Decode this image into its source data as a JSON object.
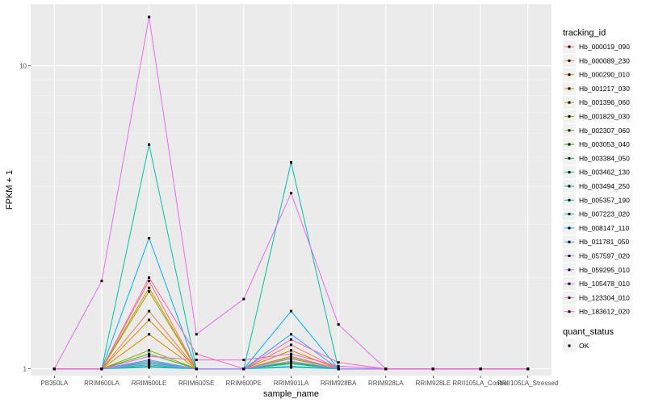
{
  "chart_data": {
    "type": "line",
    "xlabel": "sample_name",
    "ylabel": "FPKM + 1",
    "y_scale": "log10",
    "ylim": [
      0.95,
      16
    ],
    "y_ticks": [
      1,
      10
    ],
    "grid": true,
    "legend_position": "right",
    "point_color": "#000000",
    "panel_background": "#ebebeb",
    "categories": [
      "PB350LA",
      "RRIM600LA",
      "RRIM600LE",
      "RRIM600SE",
      "RRIM600PE",
      "RRIM901LA",
      "RRIM928BA",
      "RRIM928LA",
      "RRIM928LE",
      "RRII105LA_Control",
      "RRII105LA_Stressed"
    ],
    "legend_title": "tracking_id",
    "series": [
      {
        "name": "Hb_000019_090",
        "color": "#F8766D",
        "values": [
          1,
          1,
          1.95,
          1,
          1,
          1.2,
          1,
          1,
          1,
          1,
          1
        ]
      },
      {
        "name": "Hb_000089_230",
        "color": "#F07F4C",
        "values": [
          1,
          1,
          1.55,
          1,
          1,
          1.15,
          1,
          1,
          1,
          1,
          1
        ]
      },
      {
        "name": "Hb_000290_010",
        "color": "#E38900",
        "values": [
          1,
          1,
          1.45,
          1,
          1,
          1.1,
          1,
          1,
          1,
          1,
          1
        ]
      },
      {
        "name": "Hb_001217_030",
        "color": "#D29200",
        "values": [
          1,
          1,
          1.3,
          1,
          1,
          1.15,
          1,
          1,
          1,
          1,
          1
        ]
      },
      {
        "name": "Hb_001396_060",
        "color": "#BE9C00",
        "values": [
          1,
          1,
          1.85,
          1,
          1,
          1.05,
          1,
          1,
          1,
          1,
          1
        ]
      },
      {
        "name": "Hb_001829_030",
        "color": "#A3A500",
        "values": [
          1,
          1,
          1.8,
          1,
          1,
          1.08,
          1,
          1,
          1,
          1,
          1
        ]
      },
      {
        "name": "Hb_002307_060",
        "color": "#7CAE00",
        "values": [
          1,
          1,
          1.15,
          1,
          1,
          1.05,
          1,
          1,
          1,
          1,
          1
        ]
      },
      {
        "name": "Hb_003053_040",
        "color": "#39B600",
        "values": [
          1,
          1,
          1.12,
          1,
          1,
          1.04,
          1,
          1,
          1,
          1,
          1
        ]
      },
      {
        "name": "Hb_003384_050",
        "color": "#00BB4E",
        "values": [
          1,
          1,
          1.05,
          1,
          1,
          1.05,
          1,
          1,
          1,
          1,
          1
        ]
      },
      {
        "name": "Hb_003462_130",
        "color": "#00BF7D",
        "values": [
          1,
          1,
          1.02,
          1,
          1,
          1.04,
          1,
          1,
          1,
          1,
          1
        ]
      },
      {
        "name": "Hb_003494_250",
        "color": "#00C1A3",
        "values": [
          1,
          1,
          5.5,
          1,
          1,
          4.8,
          1,
          1,
          1,
          1,
          1
        ]
      },
      {
        "name": "Hb_005357_190",
        "color": "#00BFC4",
        "values": [
          1,
          1,
          1.03,
          1,
          1,
          1.02,
          1,
          1,
          1,
          1,
          1
        ]
      },
      {
        "name": "Hb_007223_020",
        "color": "#00BAE0",
        "values": [
          1,
          1,
          1.01,
          1,
          1,
          1.01,
          1,
          1,
          1,
          1,
          1
        ]
      },
      {
        "name": "Hb_008147_110",
        "color": "#00B0F6",
        "values": [
          1,
          1,
          2.7,
          1,
          1,
          1.55,
          1,
          1,
          1,
          1,
          1
        ]
      },
      {
        "name": "Hb_011781_050",
        "color": "#35A2FF",
        "values": [
          1,
          1,
          1.07,
          1,
          1,
          1.3,
          1,
          1,
          1,
          1,
          1
        ]
      },
      {
        "name": "Hb_057597_020",
        "color": "#9590FF",
        "values": [
          1,
          1,
          1.06,
          1,
          1,
          1.09,
          1,
          1,
          1,
          1,
          1
        ]
      },
      {
        "name": "Hb_059295_010",
        "color": "#C77CFF",
        "values": [
          1,
          1,
          1.04,
          1,
          1,
          1.06,
          1,
          1,
          1,
          1,
          1
        ]
      },
      {
        "name": "Hb_105478_010",
        "color": "#E76BF3",
        "values": [
          1,
          1.95,
          14.5,
          1.3,
          1.7,
          3.8,
          1.4,
          1,
          1,
          1,
          1
        ]
      },
      {
        "name": "Hb_123304_010",
        "color": "#FA62DB",
        "values": [
          1,
          1,
          1.1,
          1.07,
          1.07,
          1.12,
          1.02,
          1,
          1,
          1,
          1
        ]
      },
      {
        "name": "Hb_183612_020",
        "color": "#FF62BC",
        "values": [
          1,
          1,
          2.0,
          1.12,
          1,
          1.25,
          1.05,
          1,
          1,
          1,
          1
        ]
      }
    ],
    "shape_legend_title": "quant_status",
    "shape_legend_items": [
      "OK"
    ]
  }
}
